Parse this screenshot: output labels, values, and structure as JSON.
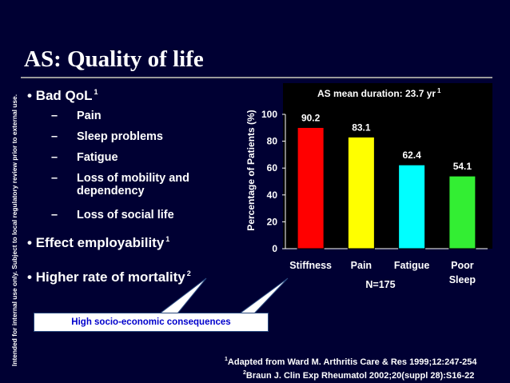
{
  "side_note": "Intended for internal use only. Subject to local regulatory review prior to external use.",
  "title": "AS: Quality of life",
  "bullets": {
    "qol": {
      "label": "Bad QoL",
      "ref": "1"
    },
    "qol_items": [
      {
        "text": "Pain"
      },
      {
        "text": "Sleep problems"
      },
      {
        "text": "Fatigue"
      },
      {
        "text": "Loss of mobility and",
        "cont": "dependency"
      },
      {
        "text": "Loss of social life"
      }
    ],
    "employ": {
      "label": "Effect employability",
      "ref": "1"
    },
    "mortality": {
      "label": "Higher rate of mortality",
      "ref": "2"
    }
  },
  "callout": "High socio-economic consequences",
  "footnotes": [
    {
      "ref": "1",
      "text": "Adapted from Ward M. Arthritis Care & Res 1999;12:247-254"
    },
    {
      "ref": "2",
      "text": "Braun J. Clin Exp Rheumatol 2002;20(suppl 28):S16-22"
    }
  ],
  "chart_data": {
    "type": "bar",
    "annotation": "AS mean duration: 23.7 yr",
    "annotation_ref": "1",
    "ylabel": "Percentage of Patients (%)",
    "ylim": [
      0,
      100
    ],
    "yticks": [
      0,
      20,
      40,
      60,
      80,
      100
    ],
    "categories": [
      "Stiffness",
      "Pain",
      "Fatigue",
      "Poor Sleep"
    ],
    "category_lines": [
      [
        "Stiffness"
      ],
      [
        "Pain"
      ],
      [
        "Fatigue"
      ],
      [
        "Poor",
        "Sleep"
      ]
    ],
    "values": [
      90.2,
      83.1,
      62.4,
      54.1
    ],
    "value_labels": [
      "90.2",
      "83.1",
      "62.4",
      "54.1"
    ],
    "colors": [
      "#ff0000",
      "#ffff00",
      "#00ffff",
      "#33ee33"
    ],
    "n_label": "N=175",
    "plot_background": "#000000",
    "grid": false
  }
}
